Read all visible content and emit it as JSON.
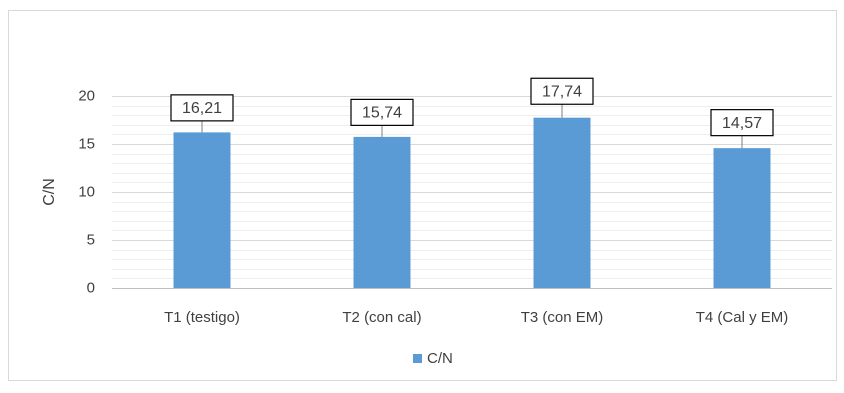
{
  "chart_data": {
    "type": "bar",
    "categories": [
      "T1 (testigo)",
      "T2 (con cal)",
      "T3 (con EM)",
      "T4 (Cal y EM)"
    ],
    "series": [
      {
        "name": "C/N",
        "values": [
          16.21,
          15.74,
          17.74,
          14.57
        ],
        "labels": [
          "16,21",
          "15,74",
          "17,74",
          "14,57"
        ],
        "color": "#5b9bd5"
      }
    ],
    "error_bars": [
      1.2,
      1.2,
      1.4,
      1.3
    ],
    "title": "",
    "xlabel": "",
    "ylabel": "C/N",
    "ylim": [
      0,
      20
    ],
    "yticks": [
      0,
      5,
      10,
      15,
      20
    ],
    "minor_step": 1,
    "grid": true,
    "legend_position": "bottom",
    "colors": {
      "bar": "#5b9bd5",
      "grid_major": "#d9d9d9",
      "grid_minor": "#eeeeee",
      "axis": "#bfbfbf",
      "text": "#404040",
      "label_box_border": "#000000",
      "error_bar": "#7f7f7f"
    }
  }
}
